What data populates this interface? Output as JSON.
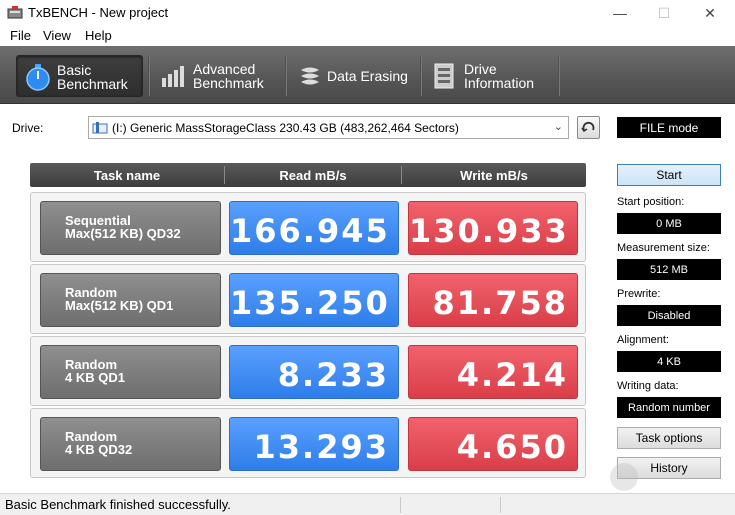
{
  "window": {
    "title": "TxBENCH - New project",
    "minimize_glyph": "—",
    "maximize_glyph": "☐",
    "close_glyph": "✕"
  },
  "menu": [
    "File",
    "View",
    "Help"
  ],
  "tabs": [
    {
      "label": "Basic\nBenchmark",
      "icon": "stopwatch-icon",
      "active": true
    },
    {
      "label": "Advanced\nBenchmark",
      "icon": "bar-chart-icon",
      "active": false
    },
    {
      "label": "Data Erasing",
      "icon": "eraser-icon",
      "active": false
    },
    {
      "label": "Drive\nInformation",
      "icon": "drive-info-icon",
      "active": false
    }
  ],
  "drive": {
    "label": "Drive:",
    "selected": "(I:) Generic MassStorageClass  230.43 GB (483,262,464 Sectors)",
    "mode": "FILE mode"
  },
  "table": {
    "headers": [
      "Task name",
      "Read mB/s",
      "Write mB/s"
    ],
    "rows": [
      {
        "task": "Sequential\nMax(512 KB) QD32",
        "read": "166.945",
        "write": "130.933"
      },
      {
        "task": "Random\nMax(512 KB) QD1",
        "read": "135.250",
        "write": "81.758"
      },
      {
        "task": "Random\n4 KB QD1",
        "read": "8.233",
        "write": "4.214"
      },
      {
        "task": "Random\n4 KB QD32",
        "read": "13.293",
        "write": "4.650"
      }
    ]
  },
  "side": {
    "start_label": "Start",
    "start_position_label": "Start position:",
    "start_position": "0 MB",
    "measurement_size_label": "Measurement size:",
    "measurement_size": "512 MB",
    "prewrite_label": "Prewrite:",
    "prewrite": "Disabled",
    "alignment_label": "Alignment:",
    "alignment": "4 KB",
    "writing_data_label": "Writing data:",
    "writing_data": "Random number",
    "task_options_label": "Task options",
    "history_label": "History"
  },
  "status": {
    "text": "Basic Benchmark finished successfully."
  },
  "colors": {
    "read": "#2e7de8",
    "write": "#d93e48",
    "toolbar": "#555555"
  }
}
